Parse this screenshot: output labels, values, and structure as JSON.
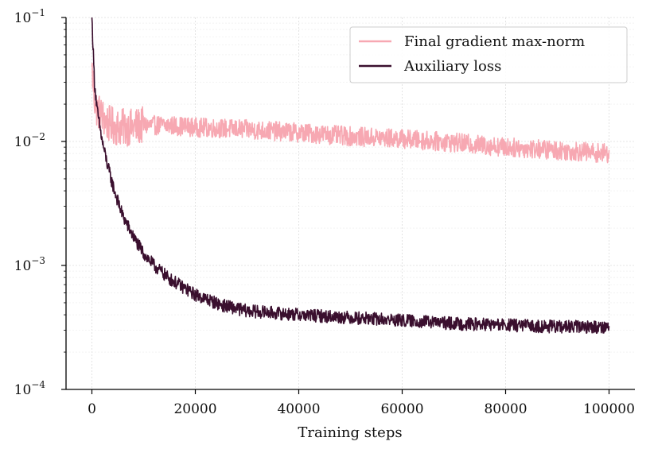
{
  "chart_data": {
    "type": "line",
    "title": "",
    "xlabel": "Training steps",
    "ylabel": "",
    "xlim": [
      -5000,
      105000
    ],
    "ylim": [
      0.0001,
      0.1
    ],
    "yscale": "log",
    "x_ticks": [
      0,
      20000,
      40000,
      60000,
      80000,
      100000
    ],
    "x_tick_labels": [
      "0",
      "20000",
      "40000",
      "60000",
      "80000",
      "100000"
    ],
    "y_ticks": [
      0.1,
      0.01,
      0.001,
      0.0001
    ],
    "y_tick_labels": [
      {
        "base": "10",
        "exp": "−1"
      },
      {
        "base": "10",
        "exp": "−2"
      },
      {
        "base": "10",
        "exp": "−3"
      },
      {
        "base": "10",
        "exp": "−4"
      }
    ],
    "grid": true,
    "legend_position": "top-right",
    "series": [
      {
        "name": "Final gradient max-norm",
        "color": "#f7a8b2",
        "x": [
          0,
          500,
          1000,
          2000,
          3000,
          5000,
          8000,
          10000,
          15000,
          20000,
          30000,
          40000,
          50000,
          60000,
          70000,
          80000,
          90000,
          100000
        ],
        "values": [
          0.04,
          0.022,
          0.018,
          0.016,
          0.014,
          0.013,
          0.013,
          0.0135,
          0.0135,
          0.013,
          0.0125,
          0.0118,
          0.011,
          0.0105,
          0.0098,
          0.009,
          0.0085,
          0.008
        ]
      },
      {
        "name": "Auxiliary loss",
        "color": "#3a0f2e",
        "x": [
          0,
          500,
          1000,
          2000,
          3000,
          4000,
          5000,
          6000,
          8000,
          10000,
          12000,
          15000,
          20000,
          25000,
          30000,
          40000,
          50000,
          60000,
          70000,
          80000,
          90000,
          100000
        ],
        "values": [
          0.1,
          0.03,
          0.018,
          0.01,
          0.0065,
          0.0045,
          0.0033,
          0.0025,
          0.0017,
          0.00125,
          0.001,
          0.00078,
          0.00058,
          0.00048,
          0.00043,
          0.0004,
          0.00038,
          0.00036,
          0.00034,
          0.00033,
          0.00032,
          0.00032
        ]
      }
    ]
  }
}
